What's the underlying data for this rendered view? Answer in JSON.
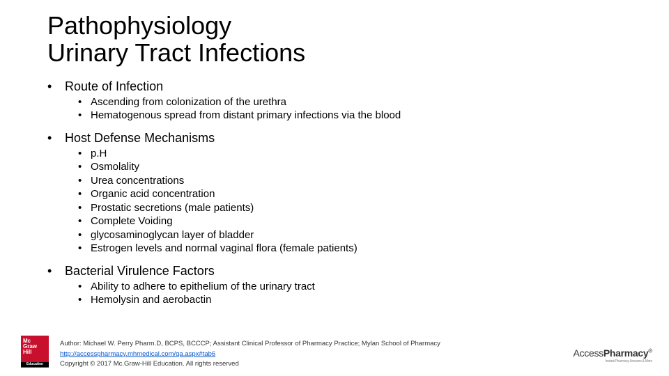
{
  "title_line1": "Pathophysiology",
  "title_line2": "Urinary Tract Infections",
  "sections": [
    {
      "label": "Route of Infection",
      "items": [
        "Ascending from colonization of the urethra",
        "Hematogenous spread from distant primary infections via the blood"
      ]
    },
    {
      "label": "Host Defense Mechanisms",
      "items": [
        "p.H",
        "Osmolality",
        "Urea concentrations",
        "Organic acid concentration",
        "Prostatic secretions (male patients)",
        "Complete Voiding",
        "glycosaminoglycan layer of bladder",
        "Estrogen levels and normal vaginal flora (female patients)"
      ]
    },
    {
      "label": "Bacterial Virulence Factors",
      "items": [
        "Ability to adhere to epithelium of the urinary tract",
        "Hemolysin and aerobactin"
      ]
    }
  ],
  "footer": {
    "author": "Author: Michael W. Perry Pharm.D, BCPS, BCCCP; Assistant Clinical Professor of Pharmacy Practice; Mylan School of Pharmacy",
    "url": "http://accesspharmacy.mhmedical.com/qa.aspx#tab6",
    "copyright": "Copyright © 2017 Mc.Graw-Hill Education. All rights reserved"
  },
  "logo_left": {
    "line1": "Mc",
    "line2": "Graw",
    "line3": "Hill",
    "edu": "Education"
  },
  "logo_right": {
    "a": "Access",
    "p": "Pharmacy",
    "tag": "Instant Pharmacy Answers & More"
  },
  "colors": {
    "brand_red": "#c8102e",
    "link": "#0a58ca"
  }
}
